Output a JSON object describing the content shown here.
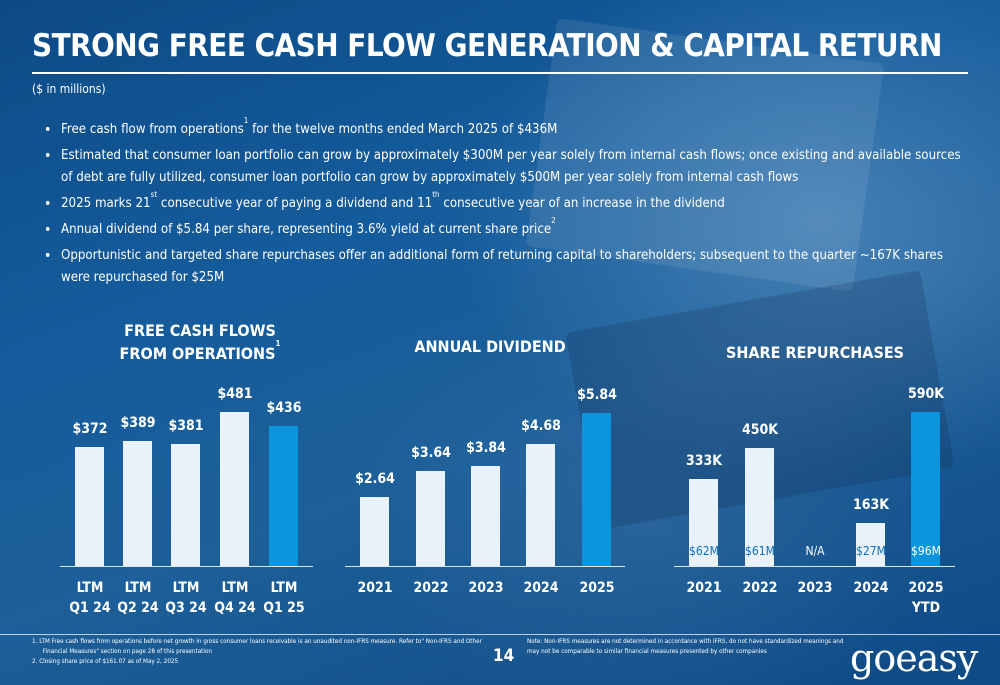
{
  "title": "STRONG FREE CASH FLOW GENERATION & CAPITAL RETURN",
  "subtitle": "($ in millions)",
  "bullets": [
    {
      "text_a": "Free cash flow from operations",
      "sup_a": "1",
      "text_b": " for the twelve months ended March 2025 of $436M"
    },
    {
      "text_a": "Estimated that consumer loan portfolio can grow by approximately $300M per year solely from internal cash flows; once existing and available sources of debt are fully utilized, consumer loan portfolio can grow by approximately $500M per year solely from internal cash flows"
    },
    {
      "text_a": "2025 marks 21",
      "sup_a": "st",
      "text_b": " consecutive year of paying a dividend and 11",
      "sup_b": "th",
      "text_c": " consecutive year of an increase in the dividend"
    },
    {
      "text_a": "Annual dividend of $5.84 per share, representing 3.6% yield at current share price",
      "sup_a": "2"
    },
    {
      "text_a": "Opportunistic and targeted share repurchases offer an additional form of returning capital to shareholders; subsequent to the quarter ~167K shares were repurchased for $25M"
    }
  ],
  "chart_titles": {
    "fcf_line1": "FREE CASH FLOWS",
    "fcf_line2": "FROM OPERATIONS",
    "fcf_sup": "1",
    "dividend": "ANNUAL DIVIDEND",
    "repurchase": "SHARE REPURCHASES"
  },
  "chart_data": [
    {
      "type": "bar",
      "title": "FREE CASH FLOWS FROM OPERATIONS",
      "categories": [
        "LTM Q1 24",
        "LTM Q2 24",
        "LTM Q3 24",
        "LTM Q4 24",
        "LTM Q1 25"
      ],
      "category_lines": [
        [
          "LTM",
          "Q1 24"
        ],
        [
          "LTM",
          "Q2 24"
        ],
        [
          "LTM",
          "Q3 24"
        ],
        [
          "LTM",
          "Q4 24"
        ],
        [
          "LTM",
          "Q1 25"
        ]
      ],
      "values": [
        372,
        389,
        381,
        481,
        436
      ],
      "labels": [
        "$372",
        "$389",
        "$381",
        "$481",
        "$436"
      ],
      "highlight_index": 4,
      "ylim": [
        0,
        530
      ]
    },
    {
      "type": "bar",
      "title": "ANNUAL DIVIDEND",
      "categories": [
        "2021",
        "2022",
        "2023",
        "2024",
        "2025"
      ],
      "category_lines": [
        [
          "2021"
        ],
        [
          "2022"
        ],
        [
          "2023"
        ],
        [
          "2024"
        ],
        [
          "2025"
        ]
      ],
      "values": [
        2.64,
        3.64,
        3.84,
        4.68,
        5.84
      ],
      "labels": [
        "$2.64",
        "$3.64",
        "$3.84",
        "$4.68",
        "$5.84"
      ],
      "highlight_index": 4,
      "ylim": [
        0,
        6.5
      ]
    },
    {
      "type": "bar",
      "title": "SHARE REPURCHASES",
      "categories": [
        "2021",
        "2022",
        "2023",
        "2024",
        "2025 YTD"
      ],
      "category_lines": [
        [
          "2021"
        ],
        [
          "2022"
        ],
        [
          "2023"
        ],
        [
          "2024"
        ],
        [
          "2025",
          "YTD"
        ]
      ],
      "values": [
        333,
        450,
        null,
        163,
        590
      ],
      "labels": [
        "333K",
        "450K",
        "",
        "163K",
        "590K"
      ],
      "inner_labels": [
        "$62M",
        "$61M",
        "N/A",
        "$27M",
        "$96M"
      ],
      "highlight_index": 4,
      "ylim": [
        0,
        650
      ]
    }
  ],
  "footnotes": [
    "1.   LTM Free cash flows from operations before net growth in gross consumer loans receivable is an unaudited non-IFRS measure. Refer to\" Non-IFRS and Other",
    "      Financial Measures\" section on page 28 of this presentation",
    "2.   Closing share price of $161.07 as of May 2, 2025"
  ],
  "page_number": "14",
  "note": "Note: Non-IFRS measures are not determined in accordance with IFRS, do not have standardized meanings and may not be comparable to similar financial measures presented by other companies",
  "logo_text": "goeasy",
  "colors": {
    "background": "#0e4a85",
    "bar_light": "#e9f2fb",
    "bar_highlight": "#0b95dc",
    "inner_label": "#0b6fb9"
  }
}
